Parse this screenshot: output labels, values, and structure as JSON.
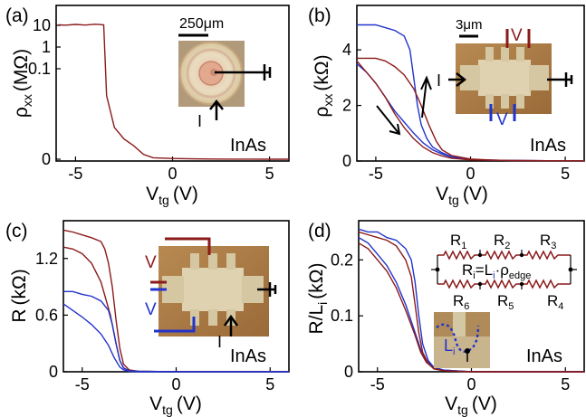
{
  "colors": {
    "red": "#8b1a1a",
    "blue": "#2233cc",
    "axis": "#000000"
  },
  "chart_data": [
    {
      "panel": "(a)",
      "type": "line",
      "sample": "InAs",
      "xlabel": "V",
      "xlabel_sub": "tg",
      "xlabel_unit": "(V)",
      "ylabel": "ρ",
      "ylabel_sub": "xx",
      "ylabel_unit": "(MΩ)",
      "xlim": [
        -6,
        6
      ],
      "xticks": [
        -5,
        0,
        5
      ],
      "y_scale": "piecewise-log",
      "yticks": [
        {
          "v": 0,
          "label": "0"
        },
        {
          "v": 0.1,
          "label": "0.1"
        },
        {
          "v": 1,
          "label": "1"
        },
        {
          "v": 10,
          "label": "10"
        }
      ],
      "inset": {
        "scale_label": "250μm",
        "current_label": "I"
      },
      "series": [
        {
          "color": "red",
          "x": [
            -5.9,
            -5.5,
            -5,
            -4.5,
            -4,
            -3.7,
            -3.55,
            -3.4,
            -3.0,
            -2.5,
            -2.0,
            -1.5,
            -1.0,
            0,
            1,
            2,
            3,
            4,
            5,
            6
          ],
          "y": [
            10.5,
            10.2,
            11,
            10.3,
            11.2,
            10.8,
            10.5,
            0.02,
            0.003,
            0.0015,
            0.001,
            0.0006,
            0.0004,
            0.0002,
            0.0001,
            5e-05,
            3e-05,
            2e-05,
            1e-05,
            0.0
          ]
        }
      ]
    },
    {
      "panel": "(b)",
      "type": "line",
      "sample": "InAs",
      "xlabel": "V",
      "xlabel_sub": "tg",
      "xlabel_unit": "(V)",
      "ylabel": "ρ",
      "ylabel_sub": "xx",
      "ylabel_unit": "(kΩ)",
      "xlim": [
        -6,
        6
      ],
      "ylim": [
        0,
        5.6
      ],
      "xticks": [
        -5,
        0,
        5
      ],
      "yticks": [
        {
          "v": 0,
          "label": "0"
        },
        {
          "v": 2,
          "label": "2"
        },
        {
          "v": 4,
          "label": "4"
        }
      ],
      "inset": {
        "scale_label": "3μm",
        "current_label": "I",
        "voltage_label_red": "V",
        "voltage_label_blue": "V"
      },
      "series": [
        {
          "color": "blue",
          "x": [
            -6,
            -5,
            -4.5,
            -4,
            -3.5,
            -3.2,
            -3.0,
            -2.8,
            -2.6,
            -2.3,
            -2.0,
            -1.5,
            -1.0,
            0,
            1,
            2,
            4,
            6
          ],
          "y": [
            4.9,
            4.9,
            4.8,
            4.7,
            4.5,
            4.0,
            3.0,
            2.0,
            1.3,
            0.8,
            0.5,
            0.3,
            0.15,
            0.06,
            0.03,
            0.02,
            0.01,
            0.01
          ]
        },
        {
          "color": "blue",
          "x": [
            -6,
            -5.5,
            -5,
            -4.5,
            -4,
            -3.5,
            -3.0,
            -2.5,
            -2.0,
            -1.5,
            -1.0,
            0,
            2,
            4,
            6
          ],
          "y": [
            3.5,
            3.2,
            2.8,
            2.3,
            1.8,
            1.4,
            1.0,
            0.65,
            0.4,
            0.25,
            0.14,
            0.05,
            0.02,
            0.01,
            0.01
          ]
        },
        {
          "color": "red",
          "x": [
            -6,
            -5,
            -4.5,
            -4,
            -3.5,
            -3.0,
            -2.6,
            -2.2,
            -1.8,
            -1.5,
            -1.0,
            0,
            1,
            2,
            4,
            6
          ],
          "y": [
            3.7,
            3.7,
            3.6,
            3.4,
            3.1,
            2.6,
            2.0,
            1.3,
            0.7,
            0.4,
            0.2,
            0.07,
            0.04,
            0.02,
            0.01,
            0.01
          ]
        },
        {
          "color": "red",
          "x": [
            -6,
            -5.5,
            -5,
            -4.5,
            -4,
            -3.5,
            -3.0,
            -2.5,
            -2.0,
            -1.5,
            -1.0,
            0,
            2,
            4,
            6
          ],
          "y": [
            3.6,
            3.2,
            2.8,
            2.3,
            1.7,
            1.2,
            0.8,
            0.5,
            0.3,
            0.18,
            0.1,
            0.04,
            0.02,
            0.01,
            0.01
          ]
        }
      ]
    },
    {
      "panel": "(c)",
      "type": "line",
      "sample": "InAs",
      "xlabel": "V",
      "xlabel_sub": "tg",
      "xlabel_unit": "(V)",
      "ylabel": "R",
      "ylabel_sub": "",
      "ylabel_unit": "(kΩ)",
      "xlim": [
        -6,
        6
      ],
      "ylim": [
        0,
        1.6
      ],
      "xticks": [
        -5,
        0,
        5
      ],
      "yticks": [
        {
          "v": 0,
          "label": "0"
        },
        {
          "v": 0.6,
          "label": "0.6"
        },
        {
          "v": 1.2,
          "label": "1.2"
        }
      ],
      "inset": {
        "current_label": "I",
        "voltage_label_red": "V",
        "voltage_label_blue": "V"
      },
      "series": [
        {
          "color": "red",
          "x": [
            -6,
            -5.5,
            -5,
            -4.5,
            -4,
            -3.8,
            -3.6,
            -3.4,
            -3.2,
            -3.0,
            -2.8,
            -2.5,
            -2,
            0,
            2,
            6
          ],
          "y": [
            1.5,
            1.48,
            1.45,
            1.42,
            1.38,
            1.3,
            1.15,
            0.9,
            0.55,
            0.25,
            0.08,
            0.02,
            0.005,
            0.0,
            0.0,
            0.0
          ]
        },
        {
          "color": "red",
          "x": [
            -6,
            -5.5,
            -5,
            -4.5,
            -4,
            -3.5,
            -3.2,
            -3.0,
            -2.8,
            -2.5,
            -2,
            0,
            2,
            6
          ],
          "y": [
            1.32,
            1.3,
            1.25,
            1.15,
            0.95,
            0.6,
            0.3,
            0.12,
            0.04,
            0.01,
            0.005,
            0.0,
            0.0,
            0.0
          ]
        },
        {
          "color": "blue",
          "x": [
            -6,
            -5.5,
            -5,
            -4.5,
            -4,
            -3.6,
            -3.4,
            -3.2,
            -3.0,
            -2.8,
            -2.5,
            -2,
            0,
            2,
            6
          ],
          "y": [
            0.85,
            0.85,
            0.82,
            0.8,
            0.75,
            0.65,
            0.5,
            0.3,
            0.12,
            0.04,
            0.01,
            0.005,
            0.0,
            0.0,
            0.0
          ]
        },
        {
          "color": "blue",
          "x": [
            -6,
            -5.5,
            -5,
            -4.5,
            -4,
            -3.6,
            -3.3,
            -3.0,
            -2.8,
            -2.5,
            -2,
            0,
            2,
            6
          ],
          "y": [
            0.72,
            0.65,
            0.58,
            0.5,
            0.4,
            0.28,
            0.15,
            0.05,
            0.02,
            0.005,
            0.0,
            0.0,
            0.0,
            0.0
          ]
        }
      ]
    },
    {
      "panel": "(d)",
      "type": "line",
      "sample": "InAs",
      "xlabel": "V",
      "xlabel_sub": "tg",
      "xlabel_unit": "(V)",
      "ylabel": "R/L",
      "ylabel_sub": "i",
      "ylabel_unit": "(kΩ)",
      "xlim": [
        -6,
        6
      ],
      "ylim": [
        0,
        0.27
      ],
      "xticks": [
        -5,
        0,
        5
      ],
      "yticks": [
        {
          "v": 0,
          "label": "0"
        },
        {
          "v": 0.1,
          "label": "0.1"
        },
        {
          "v": 0.2,
          "label": "0.2"
        }
      ],
      "inset": {
        "resistors": [
          "R",
          "R",
          "R",
          "R",
          "R",
          "R"
        ],
        "resistor_subs": [
          "1",
          "2",
          "3",
          "4",
          "5",
          "6"
        ],
        "formula_a": "R",
        "formula_a_sub": "i",
        "formula_b": "=L",
        "formula_b_sub": "i",
        "formula_c": "·ρ",
        "formula_c_sub": "edge",
        "photo_label": "L",
        "photo_label_sub": "i"
      },
      "series": [
        {
          "color": "blue",
          "x": [
            -6,
            -5.5,
            -5,
            -4.5,
            -4,
            -3.5,
            -3.2,
            -3.0,
            -2.8,
            -2.6,
            -2.3,
            -2,
            -1.5,
            0,
            2,
            6
          ],
          "y": [
            0.255,
            0.25,
            0.25,
            0.24,
            0.235,
            0.22,
            0.2,
            0.16,
            0.1,
            0.05,
            0.02,
            0.008,
            0.003,
            0.0,
            0.0,
            0.0
          ]
        },
        {
          "color": "blue",
          "x": [
            -6,
            -5.5,
            -5,
            -4.5,
            -4,
            -3.5,
            -3.0,
            -2.7,
            -2.4,
            -2,
            -1.5,
            0,
            2,
            6
          ],
          "y": [
            0.24,
            0.23,
            0.21,
            0.19,
            0.16,
            0.12,
            0.07,
            0.04,
            0.02,
            0.008,
            0.003,
            0.0,
            0.0,
            0.0
          ]
        },
        {
          "color": "red",
          "x": [
            -6,
            -5.5,
            -5,
            -4.5,
            -4,
            -3.5,
            -3.2,
            -3.0,
            -2.8,
            -2.6,
            -2.3,
            -2,
            -1.5,
            0,
            2,
            6
          ],
          "y": [
            0.25,
            0.245,
            0.24,
            0.235,
            0.225,
            0.2,
            0.17,
            0.12,
            0.07,
            0.035,
            0.015,
            0.005,
            0.002,
            0.0,
            0.0,
            0.0
          ]
        },
        {
          "color": "red",
          "x": [
            -6,
            -5.5,
            -5,
            -4.5,
            -4,
            -3.5,
            -3.0,
            -2.7,
            -2.4,
            -2,
            -1.5,
            0,
            2,
            6
          ],
          "y": [
            0.23,
            0.22,
            0.2,
            0.18,
            0.15,
            0.11,
            0.065,
            0.035,
            0.017,
            0.006,
            0.002,
            0.0,
            0.0,
            0.0
          ]
        }
      ]
    }
  ]
}
